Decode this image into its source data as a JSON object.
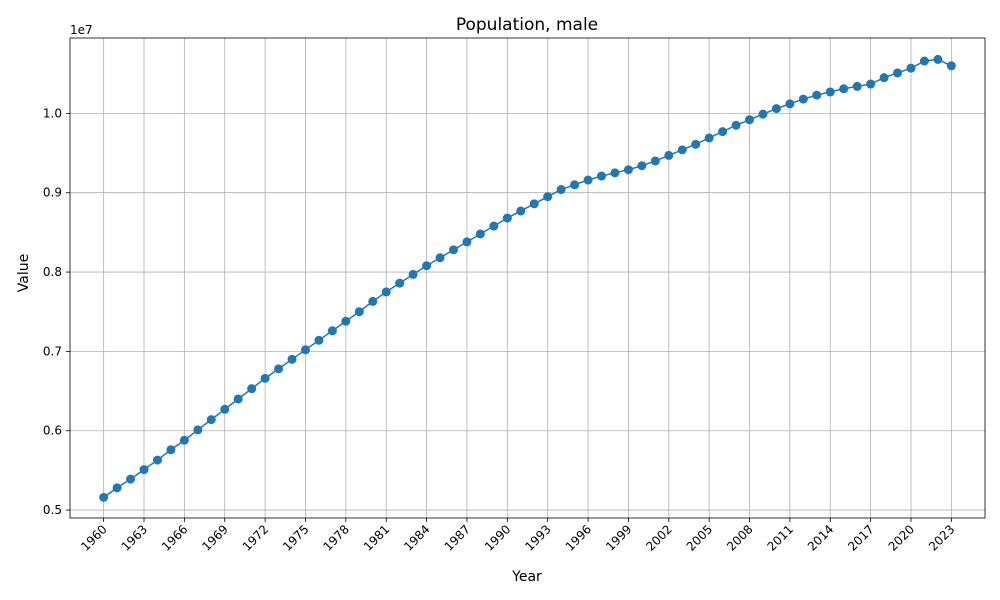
{
  "chart_data": {
    "type": "line",
    "title": "Population, male",
    "xlabel": "Year",
    "ylabel": "Value",
    "y_offset_label": "1e7",
    "x": [
      1960,
      1961,
      1962,
      1963,
      1964,
      1965,
      1966,
      1967,
      1968,
      1969,
      1970,
      1971,
      1972,
      1973,
      1974,
      1975,
      1976,
      1977,
      1978,
      1979,
      1980,
      1981,
      1982,
      1983,
      1984,
      1985,
      1986,
      1987,
      1988,
      1989,
      1990,
      1991,
      1992,
      1993,
      1994,
      1995,
      1996,
      1997,
      1998,
      1999,
      2000,
      2001,
      2002,
      2003,
      2004,
      2005,
      2006,
      2007,
      2008,
      2009,
      2010,
      2011,
      2012,
      2013,
      2014,
      2015,
      2016,
      2017,
      2018,
      2019,
      2020,
      2021,
      2022,
      2023
    ],
    "series": [
      {
        "values": [
          5160000,
          5280000,
          5390000,
          5510000,
          5630000,
          5760000,
          5880000,
          6010000,
          6140000,
          6270000,
          6400000,
          6530000,
          6660000,
          6780000,
          6900000,
          7020000,
          7140000,
          7260000,
          7380000,
          7500000,
          7630000,
          7750000,
          7860000,
          7970000,
          8080000,
          8180000,
          8280000,
          8380000,
          8480000,
          8580000,
          8680000,
          8770000,
          8860000,
          8950000,
          9040000,
          9100000,
          9160000,
          9210000,
          9250000,
          9290000,
          9340000,
          9400000,
          9470000,
          9540000,
          9610000,
          9690000,
          9770000,
          9850000,
          9920000,
          9990000,
          10060000,
          10120000,
          10180000,
          10230000,
          10270000,
          10310000,
          10340000,
          10370000,
          10450000,
          10510000,
          10570000,
          10660000,
          10680000,
          10600000
        ]
      }
    ],
    "x_ticks": [
      "1960",
      "1963",
      "1966",
      "1969",
      "1972",
      "1975",
      "1978",
      "1981",
      "1984",
      "1987",
      "1990",
      "1993",
      "1996",
      "1999",
      "2002",
      "2005",
      "2008",
      "2011",
      "2014",
      "2017",
      "2020",
      "2023"
    ],
    "y_ticks": [
      "0.5",
      "0.6",
      "0.7",
      "0.8",
      "0.9",
      "1.0"
    ],
    "y_tick_values": [
      0.5,
      0.6,
      0.7,
      0.8,
      0.9,
      1.0
    ],
    "xlim": [
      1957.5,
      2025.5
    ],
    "ylim": [
      0.49,
      1.095
    ],
    "y_scale": 10000000,
    "grid": true,
    "line_color": "#1f77b4",
    "marker": "circle"
  }
}
